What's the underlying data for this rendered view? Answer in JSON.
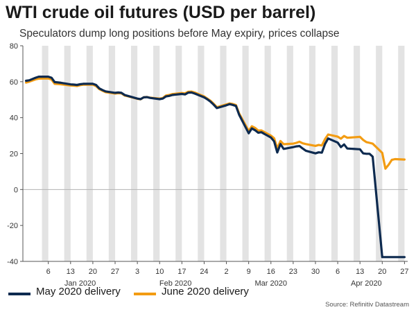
{
  "title": "WTI crude oil futures (USD per barrel)",
  "subtitle": "Speculators dump long positions before May expiry, prices collapse",
  "source": "Source: Refinitiv Datastream",
  "colors": {
    "may": "#0d2a4f",
    "june": "#f39c12",
    "band": "#e3e3e3",
    "zero": "#b3b3b3",
    "axis": "#555555"
  },
  "chart_data": {
    "type": "line",
    "xlim": [
      "2019-12-29",
      "2020-04-28"
    ],
    "ylim": [
      -40,
      80
    ],
    "yticks": [
      -40,
      -20,
      0,
      20,
      40,
      60,
      80
    ],
    "xticks": [
      {
        "date": "2020-01-06",
        "label": "6"
      },
      {
        "date": "2020-01-13",
        "label": "13"
      },
      {
        "date": "2020-01-20",
        "label": "20"
      },
      {
        "date": "2020-01-27",
        "label": "27"
      },
      {
        "date": "2020-02-03",
        "label": "3"
      },
      {
        "date": "2020-02-10",
        "label": "10"
      },
      {
        "date": "2020-02-17",
        "label": "17"
      },
      {
        "date": "2020-02-24",
        "label": "24"
      },
      {
        "date": "2020-03-02",
        "label": "2"
      },
      {
        "date": "2020-03-09",
        "label": "9"
      },
      {
        "date": "2020-03-16",
        "label": "16"
      },
      {
        "date": "2020-03-23",
        "label": "23"
      },
      {
        "date": "2020-03-30",
        "label": "30"
      },
      {
        "date": "2020-04-06",
        "label": "6"
      },
      {
        "date": "2020-04-13",
        "label": "13"
      },
      {
        "date": "2020-04-20",
        "label": "20"
      },
      {
        "date": "2020-04-27",
        "label": "27"
      }
    ],
    "month_labels": [
      {
        "date": "2020-01-16",
        "label": "Jan 2020"
      },
      {
        "date": "2020-02-15",
        "label": "Feb 2020"
      },
      {
        "date": "2020-03-16",
        "label": "Mar 2020"
      },
      {
        "date": "2020-04-15",
        "label": "Apr 2020"
      }
    ],
    "weekend_bands": [
      "2020-01-04",
      "2020-01-11",
      "2020-01-18",
      "2020-01-25",
      "2020-02-01",
      "2020-02-08",
      "2020-02-15",
      "2020-02-22",
      "2020-02-29",
      "2020-03-07",
      "2020-03-14",
      "2020-03-21",
      "2020-03-28",
      "2020-04-04",
      "2020-04-11",
      "2020-04-18",
      "2020-04-25"
    ],
    "series": [
      {
        "name": "May 2020 delivery",
        "color": "#0d2a4f",
        "points": [
          [
            "2019-12-30",
            60.5
          ],
          [
            "2019-12-31",
            60.8
          ],
          [
            "2020-01-02",
            62.2
          ],
          [
            "2020-01-03",
            62.8
          ],
          [
            "2020-01-06",
            62.8
          ],
          [
            "2020-01-07",
            62.2
          ],
          [
            "2020-01-08",
            59.8
          ],
          [
            "2020-01-09",
            59.6
          ],
          [
            "2020-01-10",
            59.4
          ],
          [
            "2020-01-13",
            58.5
          ],
          [
            "2020-01-14",
            58.4
          ],
          [
            "2020-01-15",
            58.2
          ],
          [
            "2020-01-16",
            58.6
          ],
          [
            "2020-01-17",
            58.8
          ],
          [
            "2020-01-20",
            58.8
          ],
          [
            "2020-01-21",
            58.2
          ],
          [
            "2020-01-22",
            56.3
          ],
          [
            "2020-01-23",
            55.4
          ],
          [
            "2020-01-24",
            54.6
          ],
          [
            "2020-01-27",
            53.8
          ],
          [
            "2020-01-28",
            54.0
          ],
          [
            "2020-01-29",
            53.8
          ],
          [
            "2020-01-30",
            52.6
          ],
          [
            "2020-01-31",
            52.1
          ],
          [
            "2020-02-03",
            50.6
          ],
          [
            "2020-02-04",
            50.3
          ],
          [
            "2020-02-05",
            51.3
          ],
          [
            "2020-02-06",
            51.4
          ],
          [
            "2020-02-07",
            51.0
          ],
          [
            "2020-02-10",
            50.3
          ],
          [
            "2020-02-11",
            50.6
          ],
          [
            "2020-02-12",
            51.8
          ],
          [
            "2020-02-13",
            52.1
          ],
          [
            "2020-02-14",
            52.6
          ],
          [
            "2020-02-17",
            53.2
          ],
          [
            "2020-02-18",
            52.9
          ],
          [
            "2020-02-19",
            53.9
          ],
          [
            "2020-02-20",
            54.0
          ],
          [
            "2020-02-21",
            53.4
          ],
          [
            "2020-02-24",
            51.3
          ],
          [
            "2020-02-25",
            50.2
          ],
          [
            "2020-02-26",
            48.9
          ],
          [
            "2020-02-27",
            47.2
          ],
          [
            "2020-02-28",
            45.3
          ],
          [
            "2020-03-02",
            46.9
          ],
          [
            "2020-03-03",
            47.5
          ],
          [
            "2020-03-04",
            47.1
          ],
          [
            "2020-03-05",
            46.5
          ],
          [
            "2020-03-06",
            41.6
          ],
          [
            "2020-03-09",
            31.3
          ],
          [
            "2020-03-10",
            34.0
          ],
          [
            "2020-03-11",
            33.0
          ],
          [
            "2020-03-12",
            31.6
          ],
          [
            "2020-03-13",
            31.9
          ],
          [
            "2020-03-16",
            28.9
          ],
          [
            "2020-03-17",
            26.8
          ],
          [
            "2020-03-18",
            20.6
          ],
          [
            "2020-03-19",
            25.3
          ],
          [
            "2020-03-20",
            22.6
          ],
          [
            "2020-03-23",
            23.6
          ],
          [
            "2020-03-24",
            24.0
          ],
          [
            "2020-03-25",
            24.2
          ],
          [
            "2020-03-26",
            22.8
          ],
          [
            "2020-03-27",
            21.6
          ],
          [
            "2020-03-30",
            20.1
          ],
          [
            "2020-03-31",
            20.7
          ],
          [
            "2020-04-01",
            20.5
          ],
          [
            "2020-04-02",
            25.3
          ],
          [
            "2020-04-03",
            28.4
          ],
          [
            "2020-04-06",
            26.1
          ],
          [
            "2020-04-07",
            23.6
          ],
          [
            "2020-04-08",
            25.1
          ],
          [
            "2020-04-09",
            22.8
          ],
          [
            "2020-04-13",
            22.4
          ],
          [
            "2020-04-14",
            20.1
          ],
          [
            "2020-04-15",
            19.9
          ],
          [
            "2020-04-16",
            19.9
          ],
          [
            "2020-04-17",
            18.3
          ],
          [
            "2020-04-20",
            -37.6
          ],
          [
            "2020-04-21",
            -37.6
          ],
          [
            "2020-04-22",
            -37.6
          ],
          [
            "2020-04-23",
            -37.6
          ],
          [
            "2020-04-24",
            -37.6
          ],
          [
            "2020-04-27",
            -37.6
          ]
        ]
      },
      {
        "name": "June 2020 delivery",
        "color": "#f39c12",
        "points": [
          [
            "2019-12-30",
            59.5
          ],
          [
            "2019-12-31",
            60.0
          ],
          [
            "2020-01-02",
            61.3
          ],
          [
            "2020-01-03",
            61.7
          ],
          [
            "2020-01-06",
            61.8
          ],
          [
            "2020-01-07",
            61.2
          ],
          [
            "2020-01-08",
            58.8
          ],
          [
            "2020-01-09",
            58.7
          ],
          [
            "2020-01-10",
            58.6
          ],
          [
            "2020-01-13",
            57.9
          ],
          [
            "2020-01-14",
            57.8
          ],
          [
            "2020-01-15",
            57.6
          ],
          [
            "2020-01-16",
            58.1
          ],
          [
            "2020-01-17",
            58.3
          ],
          [
            "2020-01-20",
            58.3
          ],
          [
            "2020-01-21",
            57.6
          ],
          [
            "2020-01-22",
            55.9
          ],
          [
            "2020-01-23",
            55.0
          ],
          [
            "2020-01-24",
            54.2
          ],
          [
            "2020-01-27",
            53.4
          ],
          [
            "2020-01-28",
            53.6
          ],
          [
            "2020-01-29",
            53.5
          ],
          [
            "2020-01-30",
            52.3
          ],
          [
            "2020-01-31",
            51.9
          ],
          [
            "2020-02-03",
            50.5
          ],
          [
            "2020-02-04",
            50.2
          ],
          [
            "2020-02-05",
            51.3
          ],
          [
            "2020-02-06",
            51.5
          ],
          [
            "2020-02-07",
            51.1
          ],
          [
            "2020-02-10",
            50.6
          ],
          [
            "2020-02-11",
            50.9
          ],
          [
            "2020-02-12",
            52.3
          ],
          [
            "2020-02-13",
            52.6
          ],
          [
            "2020-02-14",
            53.1
          ],
          [
            "2020-02-17",
            53.7
          ],
          [
            "2020-02-18",
            53.5
          ],
          [
            "2020-02-19",
            54.4
          ],
          [
            "2020-02-20",
            54.5
          ],
          [
            "2020-02-21",
            54.0
          ],
          [
            "2020-02-24",
            51.8
          ],
          [
            "2020-02-25",
            50.6
          ],
          [
            "2020-02-26",
            49.4
          ],
          [
            "2020-02-27",
            47.7
          ],
          [
            "2020-02-28",
            45.8
          ],
          [
            "2020-03-02",
            47.4
          ],
          [
            "2020-03-03",
            47.9
          ],
          [
            "2020-03-04",
            47.6
          ],
          [
            "2020-03-05",
            47.0
          ],
          [
            "2020-03-06",
            42.3
          ],
          [
            "2020-03-09",
            32.6
          ],
          [
            "2020-03-10",
            35.2
          ],
          [
            "2020-03-11",
            34.3
          ],
          [
            "2020-03-12",
            32.8
          ],
          [
            "2020-03-13",
            32.9
          ],
          [
            "2020-03-16",
            30.0
          ],
          [
            "2020-03-17",
            28.5
          ],
          [
            "2020-03-18",
            22.9
          ],
          [
            "2020-03-19",
            27.0
          ],
          [
            "2020-03-20",
            25.2
          ],
          [
            "2020-03-23",
            25.5
          ],
          [
            "2020-03-24",
            26.0
          ],
          [
            "2020-03-25",
            26.6
          ],
          [
            "2020-03-26",
            25.7
          ],
          [
            "2020-03-27",
            25.3
          ],
          [
            "2020-03-30",
            24.3
          ],
          [
            "2020-03-31",
            24.8
          ],
          [
            "2020-04-01",
            24.5
          ],
          [
            "2020-04-02",
            28.0
          ],
          [
            "2020-04-03",
            30.6
          ],
          [
            "2020-04-06",
            29.4
          ],
          [
            "2020-04-07",
            28.3
          ],
          [
            "2020-04-08",
            29.8
          ],
          [
            "2020-04-09",
            28.8
          ],
          [
            "2020-04-13",
            29.3
          ],
          [
            "2020-04-14",
            27.6
          ],
          [
            "2020-04-15",
            26.4
          ],
          [
            "2020-04-16",
            26.0
          ],
          [
            "2020-04-17",
            25.5
          ],
          [
            "2020-04-20",
            20.4
          ],
          [
            "2020-04-21",
            11.6
          ],
          [
            "2020-04-22",
            13.8
          ],
          [
            "2020-04-23",
            16.5
          ],
          [
            "2020-04-24",
            16.9
          ],
          [
            "2020-04-27",
            16.7
          ]
        ]
      }
    ]
  },
  "legend": [
    {
      "label": "May 2020 delivery",
      "color": "#0d2a4f"
    },
    {
      "label": "June 2020 delivery",
      "color": "#f39c12"
    }
  ]
}
